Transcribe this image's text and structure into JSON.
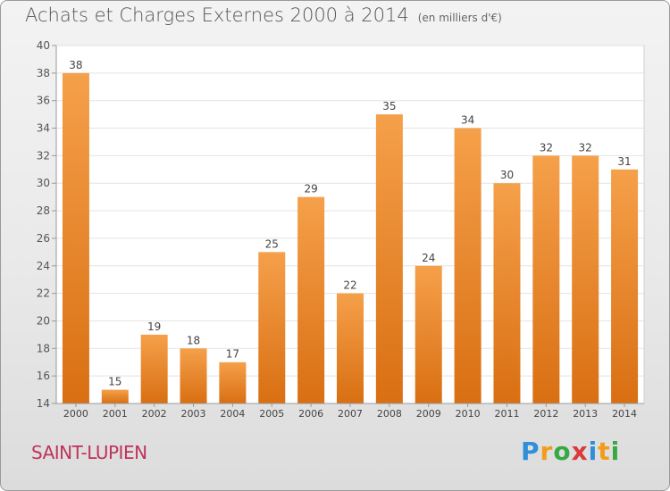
{
  "commune": "SAINT-LUPIEN",
  "logo": {
    "text": "Proxiti",
    "letters": [
      {
        "ch": "P",
        "color": "#2f8fd8"
      },
      {
        "ch": "r",
        "color": "#f39c1a"
      },
      {
        "ch": "o",
        "color": "#37a843"
      },
      {
        "ch": "x",
        "color": "#d93a3a"
      },
      {
        "ch": "i",
        "color": "#2f8fd8"
      },
      {
        "ch": "t",
        "color": "#f39c1a"
      },
      {
        "ch": "i",
        "color": "#37a843"
      }
    ]
  },
  "chart_data": {
    "type": "bar",
    "title": "Achats et Charges Externes 2000 à 2014",
    "subtitle": "(en milliers d'€)",
    "categories": [
      "2000",
      "2001",
      "2002",
      "2003",
      "2004",
      "2005",
      "2006",
      "2007",
      "2008",
      "2009",
      "2010",
      "2011",
      "2012",
      "2013",
      "2014"
    ],
    "values": [
      38,
      15,
      19,
      18,
      17,
      25,
      29,
      22,
      35,
      24,
      34,
      30,
      32,
      32,
      31
    ],
    "ylim": [
      14,
      40
    ],
    "yticks": [
      14,
      16,
      18,
      20,
      22,
      24,
      26,
      28,
      30,
      32,
      34,
      36,
      38,
      40
    ],
    "grid": true,
    "bar_color_top": "#f5a04a",
    "bar_color_bottom": "#d96f12"
  }
}
